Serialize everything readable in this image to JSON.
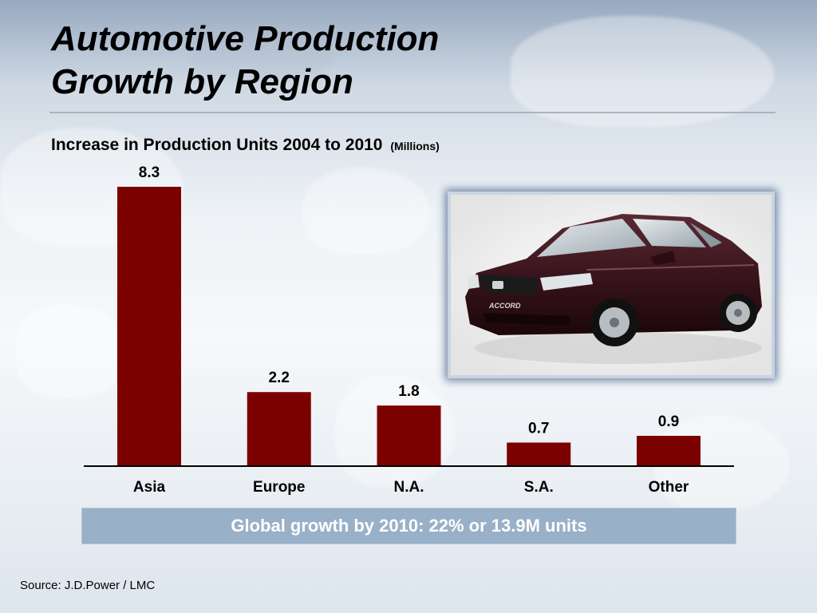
{
  "slide": {
    "title_line1": "Automotive Production",
    "title_line2": "Growth by Region",
    "callout": "Global growth by 2010:  22% or 13.9M units",
    "source": "Source:  J.D.Power / LMC"
  },
  "chart_data": {
    "type": "bar",
    "title": "Increase in Production Units 2004 to 2010",
    "unit": "(Millions)",
    "categories": [
      "Asia",
      "Europe",
      "N.A.",
      "S.A.",
      "Other"
    ],
    "values": [
      8.3,
      2.2,
      1.8,
      0.7,
      0.9
    ],
    "data_labels": [
      "8.3",
      "2.2",
      "1.8",
      "0.7",
      "0.9"
    ],
    "ylim": [
      0,
      8.3
    ],
    "grid": false,
    "legend": "none",
    "bar_color": "#7b0000"
  },
  "image": {
    "name": "car-photo",
    "text": "ACCORD"
  },
  "colors": {
    "callout_bg": "#98b0c8",
    "title_rule": "#a9b3be",
    "photo_glow": "#6f84a3"
  }
}
